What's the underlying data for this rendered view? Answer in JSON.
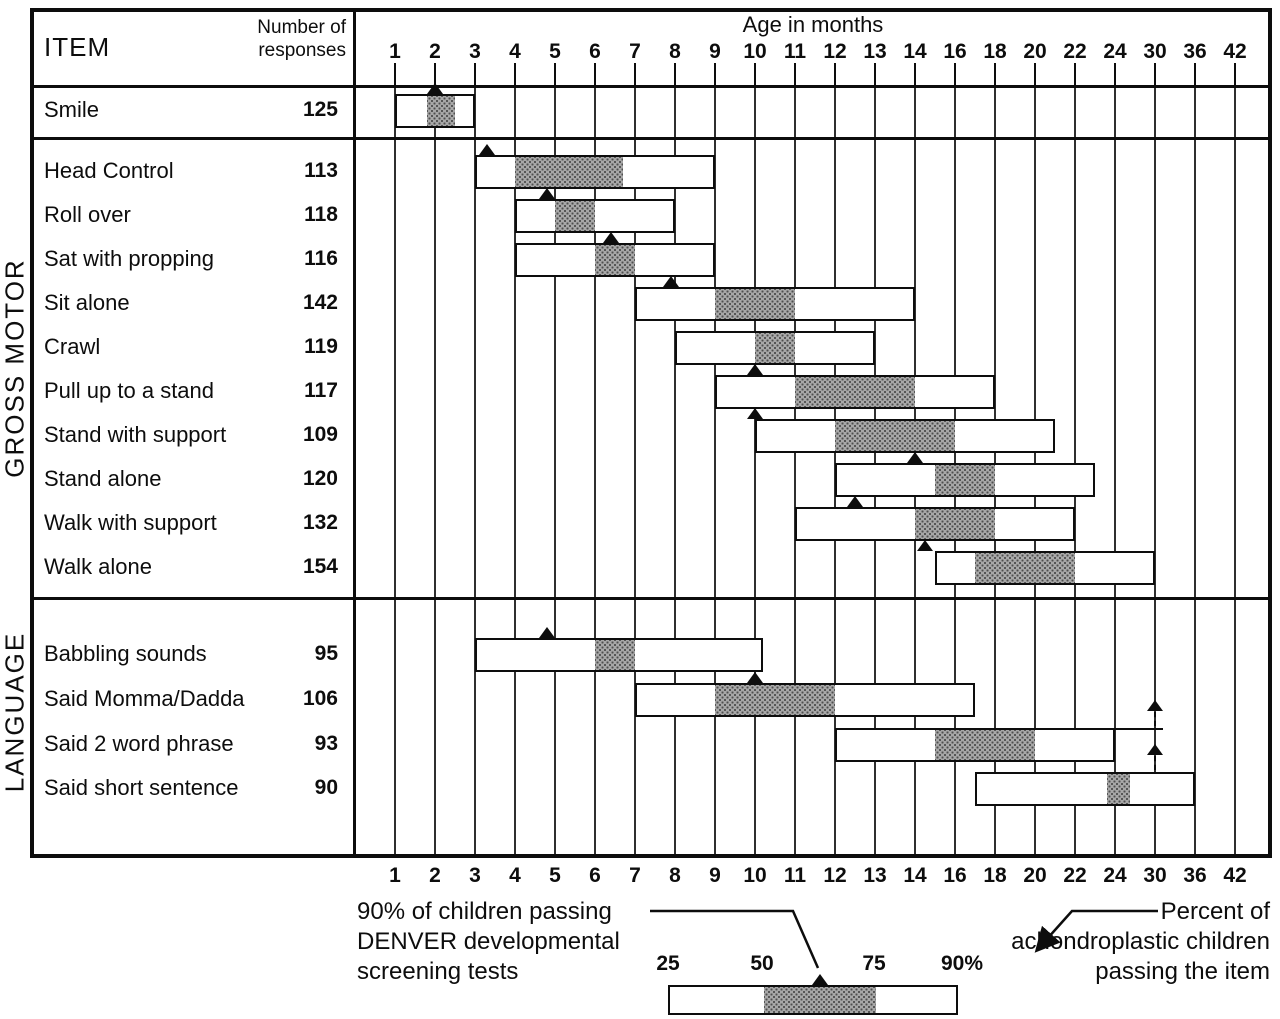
{
  "header": {
    "item_label": "ITEM",
    "responses_lines": [
      "Number of",
      "responses"
    ]
  },
  "sections": {
    "gross_motor": "GROSS MOTOR",
    "language": "LANGUAGE"
  },
  "legend": {
    "denver_lines": [
      "90% of children passing",
      "DENVER developmental",
      "screening tests"
    ],
    "percent_lines": [
      "Percent of",
      "achondroplastic children",
      "passing the item"
    ],
    "scale_labels": [
      "25",
      "50",
      "75",
      "90%"
    ]
  },
  "chart_data": {
    "type": "bar",
    "x_axis": {
      "title": "Age in months",
      "ticks": [
        1,
        2,
        3,
        4,
        5,
        6,
        7,
        8,
        9,
        10,
        11,
        12,
        13,
        14,
        16,
        18,
        20,
        22,
        24,
        30,
        36,
        42
      ],
      "scale": "non-linear, equally spaced ticks",
      "shown_on": [
        "top",
        "bottom"
      ]
    },
    "bar_meaning": {
      "bar_range_percentiles": [
        25,
        90
      ],
      "shaded_range_percentiles": [
        50,
        75
      ],
      "triangle": "age at which 90% of children pass DENVER developmental screening tests"
    },
    "rows": [
      {
        "section": "",
        "item": "Smile",
        "responses": 125,
        "bar": [
          1,
          3
        ],
        "shaded": [
          1.8,
          2.5
        ],
        "denver_90": 2,
        "arrow_up": false,
        "extension_to": null
      },
      {
        "section": "GROSS MOTOR",
        "item": "Head Control",
        "responses": 113,
        "bar": [
          3,
          9
        ],
        "shaded": [
          4,
          6.7
        ],
        "denver_90": 3.3,
        "arrow_up": false,
        "extension_to": null
      },
      {
        "section": "GROSS MOTOR",
        "item": "Roll over",
        "responses": 118,
        "bar": [
          4,
          8
        ],
        "shaded": [
          5,
          6
        ],
        "denver_90": 4.8,
        "arrow_up": false,
        "extension_to": null
      },
      {
        "section": "GROSS MOTOR",
        "item": "Sat with propping",
        "responses": 116,
        "bar": [
          4,
          9
        ],
        "shaded": [
          6,
          7
        ],
        "denver_90": 6.4,
        "arrow_up": false,
        "extension_to": null
      },
      {
        "section": "GROSS MOTOR",
        "item": "Sit alone",
        "responses": 142,
        "bar": [
          7,
          14
        ],
        "shaded": [
          9,
          11
        ],
        "denver_90": 7.9,
        "arrow_up": false,
        "extension_to": null
      },
      {
        "section": "GROSS MOTOR",
        "item": "Crawl",
        "responses": 119,
        "bar": [
          8,
          13
        ],
        "shaded": [
          10,
          11
        ],
        "denver_90": null,
        "arrow_up": false,
        "extension_to": null
      },
      {
        "section": "GROSS MOTOR",
        "item": "Pull up to a stand",
        "responses": 117,
        "bar": [
          9,
          18
        ],
        "shaded": [
          11,
          14
        ],
        "denver_90": 10,
        "arrow_up": false,
        "extension_to": null
      },
      {
        "section": "GROSS MOTOR",
        "item": "Stand with support",
        "responses": 109,
        "bar": [
          10,
          21
        ],
        "shaded": [
          12,
          16
        ],
        "denver_90": 10,
        "arrow_up": false,
        "extension_to": null
      },
      {
        "section": "GROSS MOTOR",
        "item": "Stand alone",
        "responses": 120,
        "bar": [
          12,
          23
        ],
        "shaded": [
          15,
          18
        ],
        "denver_90": 14,
        "arrow_up": false,
        "extension_to": null
      },
      {
        "section": "GROSS MOTOR",
        "item": "Walk with support",
        "responses": 132,
        "bar": [
          11,
          22
        ],
        "shaded": [
          14,
          18
        ],
        "denver_90": 12.5,
        "arrow_up": false,
        "extension_to": null
      },
      {
        "section": "GROSS MOTOR",
        "item": "Walk alone",
        "responses": 154,
        "bar": [
          15,
          30
        ],
        "shaded": [
          17,
          22
        ],
        "denver_90": 14.5,
        "arrow_up": false,
        "extension_to": null
      },
      {
        "section": "LANGUAGE",
        "item": "Babbling sounds",
        "responses": 95,
        "bar": [
          3,
          10.2
        ],
        "shaded": [
          6,
          7
        ],
        "denver_90": 4.8,
        "arrow_up": false,
        "extension_to": null
      },
      {
        "section": "LANGUAGE",
        "item": "Said Momma/Dadda",
        "responses": 106,
        "bar": [
          7,
          17
        ],
        "shaded": [
          9,
          12
        ],
        "denver_90": 10,
        "arrow_up": false,
        "extension_to": null
      },
      {
        "section": "LANGUAGE",
        "item": "Said 2 word phrase",
        "responses": 93,
        "bar": [
          12,
          24
        ],
        "shaded": [
          15,
          20
        ],
        "denver_90": 30,
        "arrow_up": true,
        "extension_to": 30
      },
      {
        "section": "LANGUAGE",
        "item": "Said short sentence",
        "responses": 90,
        "bar": [
          17,
          36
        ],
        "shaded": [
          23.6,
          26.3
        ],
        "denver_90": 30,
        "arrow_up": true,
        "extension_to": null
      }
    ]
  }
}
